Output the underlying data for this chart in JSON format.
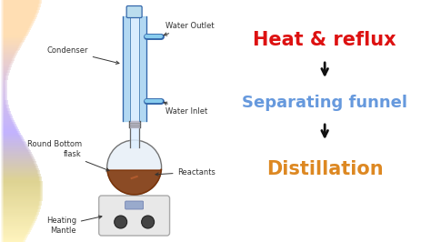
{
  "bg_color": "#ffffff",
  "right_panel": {
    "text1": "Heat & reflux",
    "text1_color": "#dd1111",
    "text1_fontsize": 15,
    "text2": "Separating funnel",
    "text2_color": "#6699dd",
    "text2_fontsize": 13,
    "text3": "Distillation",
    "text3_color": "#dd8822",
    "text3_fontsize": 15
  },
  "labels": {
    "water_outlet": "Water Outlet",
    "condenser": "Condenser",
    "water_inlet": "Water Inlet",
    "round_bottom": "Round Bottom\nflask",
    "reactants": "Reactants",
    "heating_mantle": "Heating\nMantle"
  },
  "condenser_color_outer": "#88bbdd",
  "condenser_color_inner": "#c8dff0",
  "condenser_color_bg": "#aaccee",
  "liquid_color": "#8B3a0a",
  "label_fontsize": 6.0,
  "label_color": "#333333"
}
